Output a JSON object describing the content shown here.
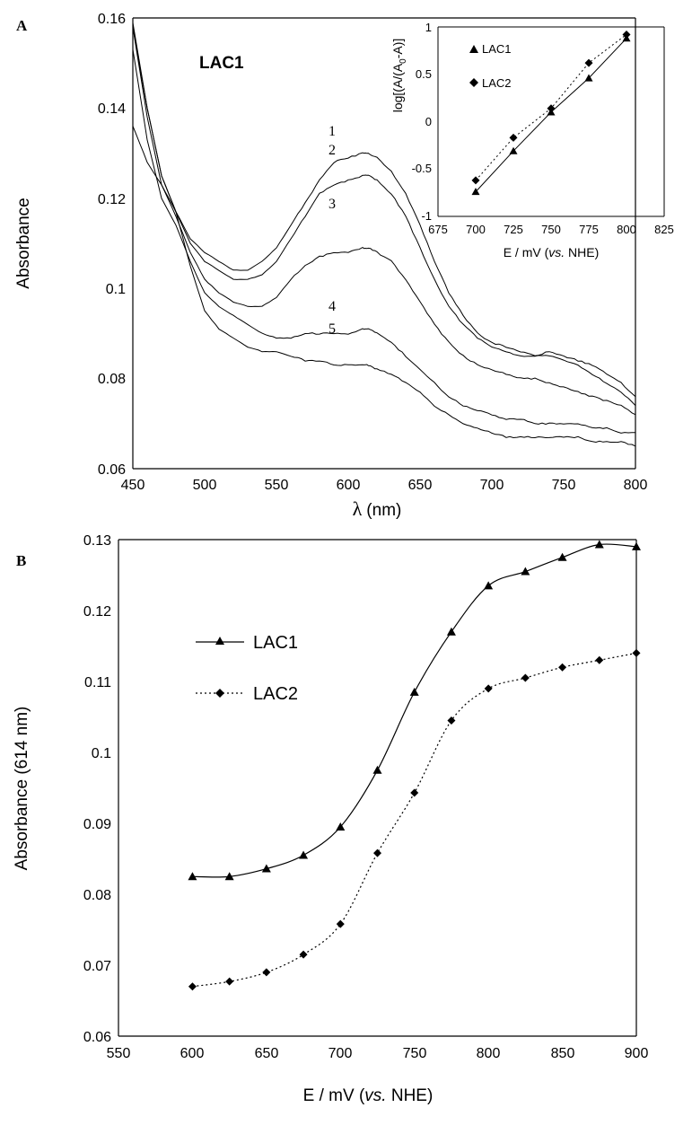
{
  "chart_data": [
    {
      "panel": "A",
      "type": "line",
      "title": "LAC1",
      "xlabel_symbol": "λ",
      "xlabel_unit": "(nm)",
      "ylabel": "Absorbance",
      "xlim": [
        450,
        800
      ],
      "ylim": [
        0.06,
        0.16
      ],
      "xticks": [
        "450",
        "500",
        "550",
        "600",
        "650",
        "700",
        "750",
        "800"
      ],
      "yticks": [
        "0.06",
        "0.08",
        "0.1",
        "0.12",
        "0.14",
        "0.16"
      ],
      "grid": false,
      "series": [
        {
          "name": "1",
          "x": [
            450,
            460,
            470,
            480,
            490,
            500,
            510,
            520,
            530,
            540,
            550,
            560,
            570,
            580,
            590,
            600,
            610,
            614,
            620,
            630,
            640,
            650,
            660,
            670,
            680,
            690,
            700,
            710,
            720,
            730,
            740,
            750,
            760,
            770,
            780,
            790,
            800
          ],
          "values": [
            0.158,
            0.14,
            0.125,
            0.117,
            0.111,
            0.108,
            0.106,
            0.104,
            0.104,
            0.106,
            0.109,
            0.114,
            0.119,
            0.124,
            0.128,
            0.129,
            0.13,
            0.13,
            0.129,
            0.126,
            0.121,
            0.114,
            0.106,
            0.099,
            0.094,
            0.09,
            0.088,
            0.087,
            0.086,
            0.085,
            0.086,
            0.085,
            0.084,
            0.083,
            0.081,
            0.079,
            0.076
          ]
        },
        {
          "name": "2",
          "x": [
            450,
            460,
            470,
            480,
            490,
            500,
            510,
            520,
            530,
            540,
            550,
            560,
            570,
            580,
            590,
            600,
            610,
            614,
            620,
            630,
            640,
            650,
            660,
            670,
            680,
            690,
            700,
            710,
            720,
            730,
            740,
            750,
            760,
            770,
            780,
            790,
            800
          ],
          "values": [
            0.159,
            0.14,
            0.125,
            0.117,
            0.11,
            0.106,
            0.104,
            0.102,
            0.102,
            0.103,
            0.106,
            0.111,
            0.116,
            0.121,
            0.123,
            0.124,
            0.125,
            0.125,
            0.124,
            0.121,
            0.116,
            0.109,
            0.102,
            0.096,
            0.092,
            0.089,
            0.087,
            0.086,
            0.085,
            0.085,
            0.085,
            0.084,
            0.083,
            0.081,
            0.079,
            0.077,
            0.074
          ]
        },
        {
          "name": "3",
          "x": [
            450,
            460,
            470,
            480,
            490,
            500,
            510,
            520,
            530,
            540,
            550,
            560,
            570,
            580,
            590,
            600,
            610,
            614,
            620,
            630,
            640,
            650,
            660,
            670,
            680,
            690,
            700,
            710,
            720,
            730,
            740,
            750,
            760,
            770,
            780,
            790,
            800
          ],
          "values": [
            0.158,
            0.138,
            0.123,
            0.116,
            0.108,
            0.102,
            0.099,
            0.097,
            0.096,
            0.096,
            0.098,
            0.102,
            0.105,
            0.107,
            0.108,
            0.108,
            0.109,
            0.109,
            0.108,
            0.106,
            0.102,
            0.097,
            0.092,
            0.088,
            0.085,
            0.083,
            0.082,
            0.081,
            0.08,
            0.08,
            0.079,
            0.078,
            0.077,
            0.076,
            0.075,
            0.074,
            0.072
          ]
        },
        {
          "name": "4",
          "x": [
            450,
            460,
            470,
            480,
            490,
            500,
            510,
            520,
            530,
            540,
            550,
            560,
            570,
            580,
            590,
            600,
            610,
            614,
            620,
            630,
            640,
            650,
            660,
            670,
            680,
            690,
            700,
            710,
            720,
            730,
            740,
            750,
            760,
            770,
            780,
            790,
            800
          ],
          "values": [
            0.153,
            0.133,
            0.12,
            0.114,
            0.106,
            0.099,
            0.096,
            0.094,
            0.092,
            0.09,
            0.089,
            0.089,
            0.09,
            0.09,
            0.09,
            0.09,
            0.091,
            0.091,
            0.09,
            0.088,
            0.085,
            0.082,
            0.079,
            0.076,
            0.074,
            0.073,
            0.072,
            0.071,
            0.071,
            0.07,
            0.07,
            0.07,
            0.07,
            0.069,
            0.069,
            0.068,
            0.068
          ]
        },
        {
          "name": "5",
          "x": [
            450,
            460,
            470,
            480,
            490,
            500,
            510,
            520,
            530,
            540,
            550,
            560,
            570,
            580,
            590,
            600,
            610,
            614,
            620,
            630,
            640,
            650,
            660,
            670,
            680,
            690,
            700,
            710,
            720,
            730,
            740,
            750,
            760,
            770,
            780,
            790,
            800
          ],
          "values": [
            0.136,
            0.128,
            0.123,
            0.117,
            0.105,
            0.095,
            0.091,
            0.089,
            0.087,
            0.086,
            0.086,
            0.085,
            0.084,
            0.084,
            0.083,
            0.083,
            0.083,
            0.083,
            0.082,
            0.081,
            0.079,
            0.077,
            0.074,
            0.072,
            0.07,
            0.069,
            0.068,
            0.067,
            0.067,
            0.067,
            0.067,
            0.067,
            0.067,
            0.066,
            0.066,
            0.066,
            0.065
          ]
        }
      ],
      "inset": {
        "type": "scatter",
        "ylabel": "log[(A/(A",
        "ylabel_sub": "0",
        "ylabel_tail": "-A)]",
        "xlabel_prefix": "E / mV (",
        "xlabel_italic": "vs.",
        "xlabel_suffix": " NHE)",
        "xlim": [
          675,
          825
        ],
        "ylim": [
          -1,
          1
        ],
        "xticks": [
          "675",
          "700",
          "725",
          "750",
          "775",
          "800",
          "825"
        ],
        "yticks": [
          "-1",
          "-0.5",
          "0",
          "0.5",
          "1"
        ],
        "legend_position": "top-left",
        "series": [
          {
            "name": "LAC1",
            "marker": "triangle",
            "line": "solid",
            "x": [
              700,
              725,
              750,
              775,
              800
            ],
            "values": [
              -0.74,
              -0.31,
              0.1,
              0.46,
              0.88
            ]
          },
          {
            "name": "LAC2",
            "marker": "diamond",
            "line": "dotted",
            "x": [
              700,
              725,
              750,
              775,
              800
            ],
            "values": [
              -0.62,
              -0.17,
              0.14,
              0.62,
              0.92
            ]
          }
        ]
      }
    },
    {
      "panel": "B",
      "type": "line",
      "xlabel_prefix": "E / mV (",
      "xlabel_italic": "vs.",
      "xlabel_suffix": " NHE)",
      "ylabel": "Absorbance (614 nm)",
      "xlim": [
        550,
        900
      ],
      "ylim": [
        0.06,
        0.13
      ],
      "xticks": [
        "550",
        "600",
        "650",
        "700",
        "750",
        "800",
        "850",
        "900"
      ],
      "yticks": [
        "0.06",
        "0.07",
        "0.08",
        "0.09",
        "0.1",
        "0.11",
        "0.12",
        "0.13"
      ],
      "grid": false,
      "legend_position": "top-left",
      "series": [
        {
          "name": "LAC1",
          "marker": "triangle",
          "line": "solid",
          "x": [
            600,
            625,
            650,
            675,
            700,
            725,
            750,
            775,
            800,
            825,
            850,
            875,
            900
          ],
          "values": [
            0.0825,
            0.0825,
            0.0836,
            0.0855,
            0.0895,
            0.0975,
            0.1085,
            0.117,
            0.1235,
            0.1255,
            0.1275,
            0.1293,
            0.129
          ]
        },
        {
          "name": "LAC2",
          "marker": "diamond",
          "line": "dotted",
          "x": [
            600,
            625,
            650,
            675,
            700,
            725,
            750,
            775,
            800,
            825,
            850,
            875,
            900
          ],
          "values": [
            0.067,
            0.0677,
            0.069,
            0.0715,
            0.0758,
            0.0858,
            0.0943,
            0.1045,
            0.109,
            0.1105,
            0.112,
            0.113,
            0.114
          ]
        }
      ]
    }
  ]
}
